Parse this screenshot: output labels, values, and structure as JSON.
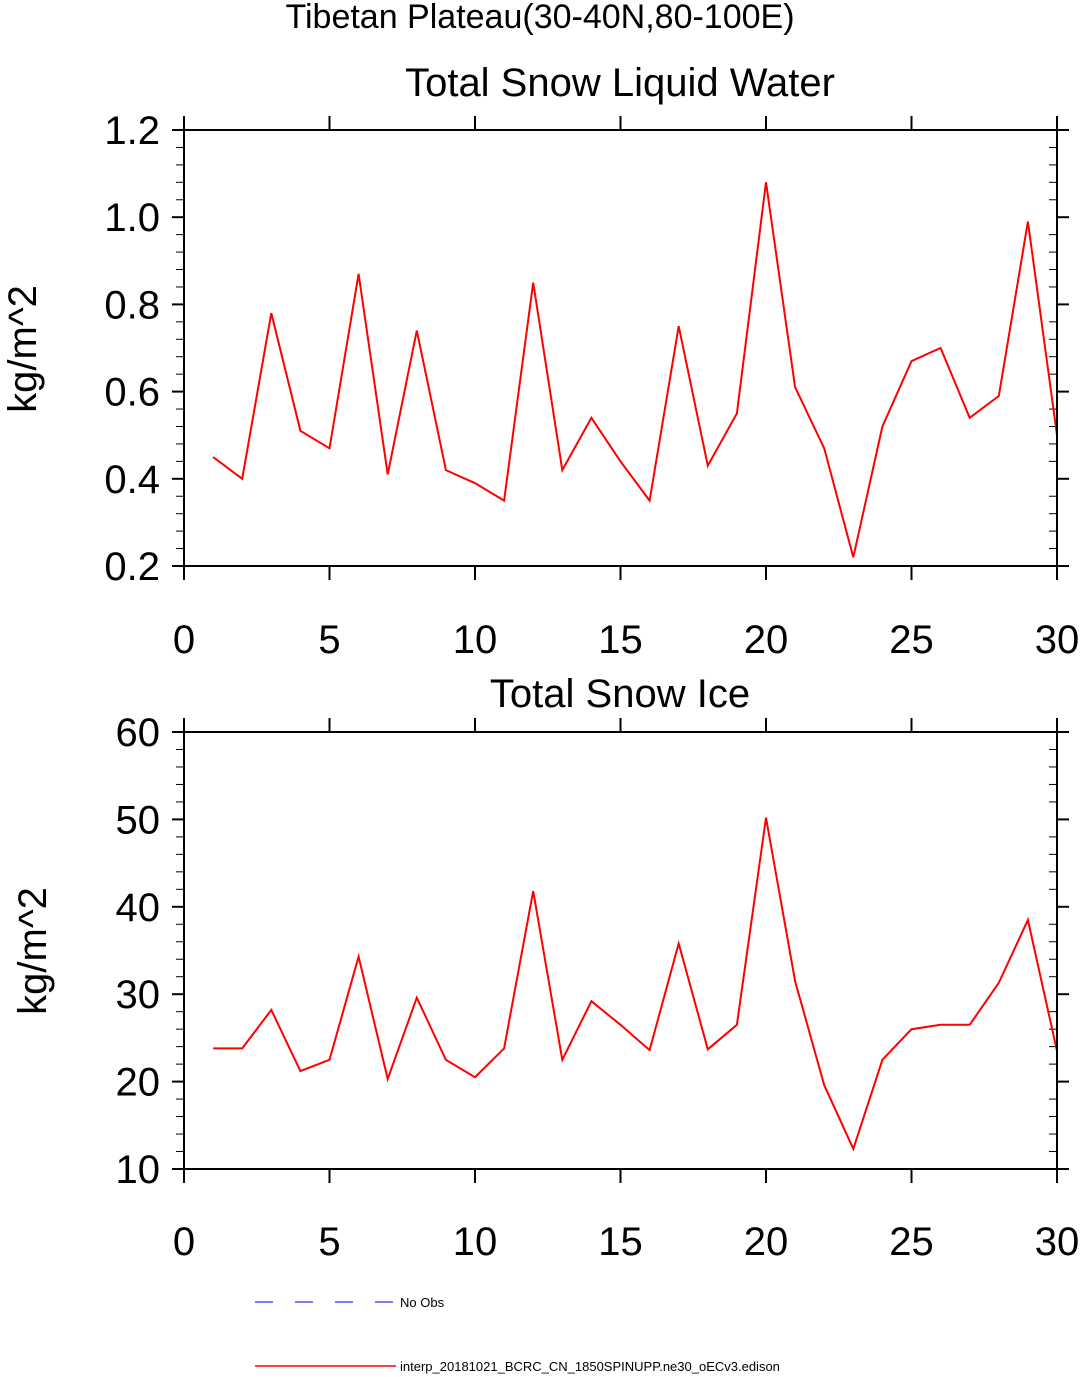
{
  "figure": {
    "main_title": "Tibetan Plateau(30-40N,80-100E)"
  },
  "legend": {
    "items": [
      {
        "label": "No Obs",
        "color": "#4d4dff",
        "style": "dashed"
      },
      {
        "label": "interp_20181021_BCRC_CN_1850SPINUPP.ne30_oECv3.edison",
        "color": "#ff0000",
        "style": "solid"
      }
    ]
  },
  "chart_data": [
    {
      "type": "line",
      "title": "Total Snow Liquid Water",
      "xlabel": "",
      "ylabel": "kg/m^2",
      "xlim": [
        0,
        30
      ],
      "ylim": [
        0.2,
        1.2
      ],
      "xticks": [
        "0",
        "5",
        "10",
        "15",
        "20",
        "25",
        "30"
      ],
      "yticks": [
        "0.2",
        "0.4",
        "0.6",
        "0.8",
        "1.0",
        "1.2"
      ],
      "series": [
        {
          "name": "interp_20181021_BCRC_CN_1850SPINUPP.ne30_oECv3.edison",
          "color": "#ff0000",
          "x": [
            1,
            2,
            3,
            4,
            5,
            6,
            7,
            8,
            9,
            10,
            11,
            12,
            13,
            14,
            15,
            16,
            17,
            18,
            19,
            20,
            21,
            22,
            23,
            24,
            25,
            26,
            27,
            28,
            29,
            30
          ],
          "values": [
            0.45,
            0.4,
            0.78,
            0.51,
            0.47,
            0.87,
            0.41,
            0.74,
            0.42,
            0.39,
            0.35,
            0.85,
            0.42,
            0.54,
            0.44,
            0.35,
            0.75,
            0.43,
            0.55,
            1.08,
            0.61,
            0.47,
            0.22,
            0.52,
            0.67,
            0.7,
            0.54,
            0.59,
            0.99,
            0.5
          ]
        }
      ]
    },
    {
      "type": "line",
      "title": "Total Snow Ice",
      "xlabel": "",
      "ylabel": "kg/m^2",
      "xlim": [
        0,
        30
      ],
      "ylim": [
        10,
        60
      ],
      "xticks": [
        "0",
        "5",
        "10",
        "15",
        "20",
        "25",
        "30"
      ],
      "yticks": [
        "10",
        "20",
        "30",
        "40",
        "50",
        "60"
      ],
      "series": [
        {
          "name": "interp_20181021_BCRC_CN_1850SPINUPP.ne30_oECv3.edison",
          "color": "#ff0000",
          "x": [
            1,
            2,
            3,
            4,
            5,
            6,
            7,
            8,
            9,
            10,
            11,
            12,
            13,
            14,
            15,
            16,
            17,
            18,
            19,
            20,
            21,
            22,
            23,
            24,
            25,
            26,
            27,
            28,
            29,
            30
          ],
          "values": [
            23.8,
            23.8,
            28.2,
            21.2,
            22.5,
            34.3,
            20.3,
            29.6,
            22.5,
            20.5,
            23.8,
            41.8,
            22.5,
            29.2,
            26.5,
            23.6,
            35.8,
            23.7,
            26.5,
            50.2,
            31.5,
            19.6,
            12.3,
            22.5,
            26.0,
            26.5,
            26.5,
            31.3,
            38.5,
            23.5
          ]
        }
      ]
    }
  ]
}
